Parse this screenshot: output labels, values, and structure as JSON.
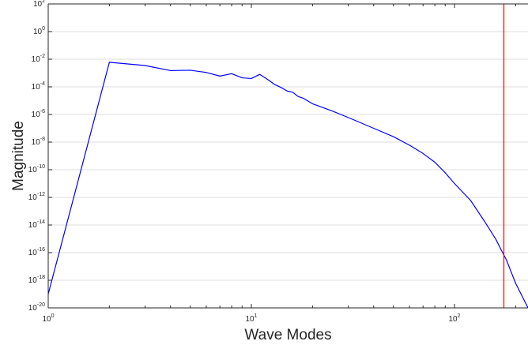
{
  "chart_data": {
    "type": "line",
    "xlabel": "Wave Modes",
    "ylabel": "Magnitude",
    "xscale": "log",
    "yscale": "log",
    "xlim": [
      1,
      230
    ],
    "ylim": [
      1e-20,
      100
    ],
    "grid": "y-major",
    "x_ticks": [
      {
        "value": 1,
        "base": "10",
        "exp": "0"
      },
      {
        "value": 10,
        "base": "10",
        "exp": "1"
      },
      {
        "value": 100,
        "base": "10",
        "exp": "2"
      }
    ],
    "y_ticks": [
      {
        "value": 100.0,
        "base": "10",
        "exp": "2"
      },
      {
        "value": 1.0,
        "base": "10",
        "exp": "0"
      },
      {
        "value": 0.01,
        "base": "10",
        "exp": "-2"
      },
      {
        "value": 0.0001,
        "base": "10",
        "exp": "-4"
      },
      {
        "value": 1e-06,
        "base": "10",
        "exp": "-6"
      },
      {
        "value": 1e-08,
        "base": "10",
        "exp": "-8"
      },
      {
        "value": 1e-10,
        "base": "10",
        "exp": "-10"
      },
      {
        "value": 1e-12,
        "base": "10",
        "exp": "-12"
      },
      {
        "value": 1e-14,
        "base": "10",
        "exp": "-14"
      },
      {
        "value": 1e-16,
        "base": "10",
        "exp": "-16"
      },
      {
        "value": 1e-18,
        "base": "10",
        "exp": "-18"
      },
      {
        "value": 1e-20,
        "base": "10",
        "exp": "-20"
      }
    ],
    "series": [
      {
        "color": "#0000ff",
        "x": [
          1,
          2,
          3,
          4,
          5,
          6,
          7,
          8,
          9,
          10,
          11,
          12,
          13,
          14,
          15,
          16,
          17,
          18,
          20,
          25,
          30,
          40,
          50,
          60,
          70,
          80,
          90,
          100,
          120,
          140,
          160,
          170,
          180,
          200,
          230
        ],
        "y": [
          1e-19,
          0.006,
          0.0035,
          0.0015,
          0.0016,
          0.0011,
          0.0006,
          0.0009,
          0.00045,
          0.0004,
          0.0008,
          0.00035,
          0.00015,
          9e-05,
          5e-05,
          4e-05,
          2e-05,
          1.5e-05,
          6e-06,
          1.8e-06,
          6e-07,
          1e-07,
          2.5e-08,
          6e-09,
          1.5e-09,
          3.5e-10,
          6e-11,
          1e-11,
          6e-13,
          2e-14,
          9e-16,
          1.5e-16,
          3e-17,
          6e-19,
          1e-20
        ]
      }
    ],
    "vertical_lines": [
      {
        "x": 175,
        "color": "#ff0000"
      }
    ]
  }
}
